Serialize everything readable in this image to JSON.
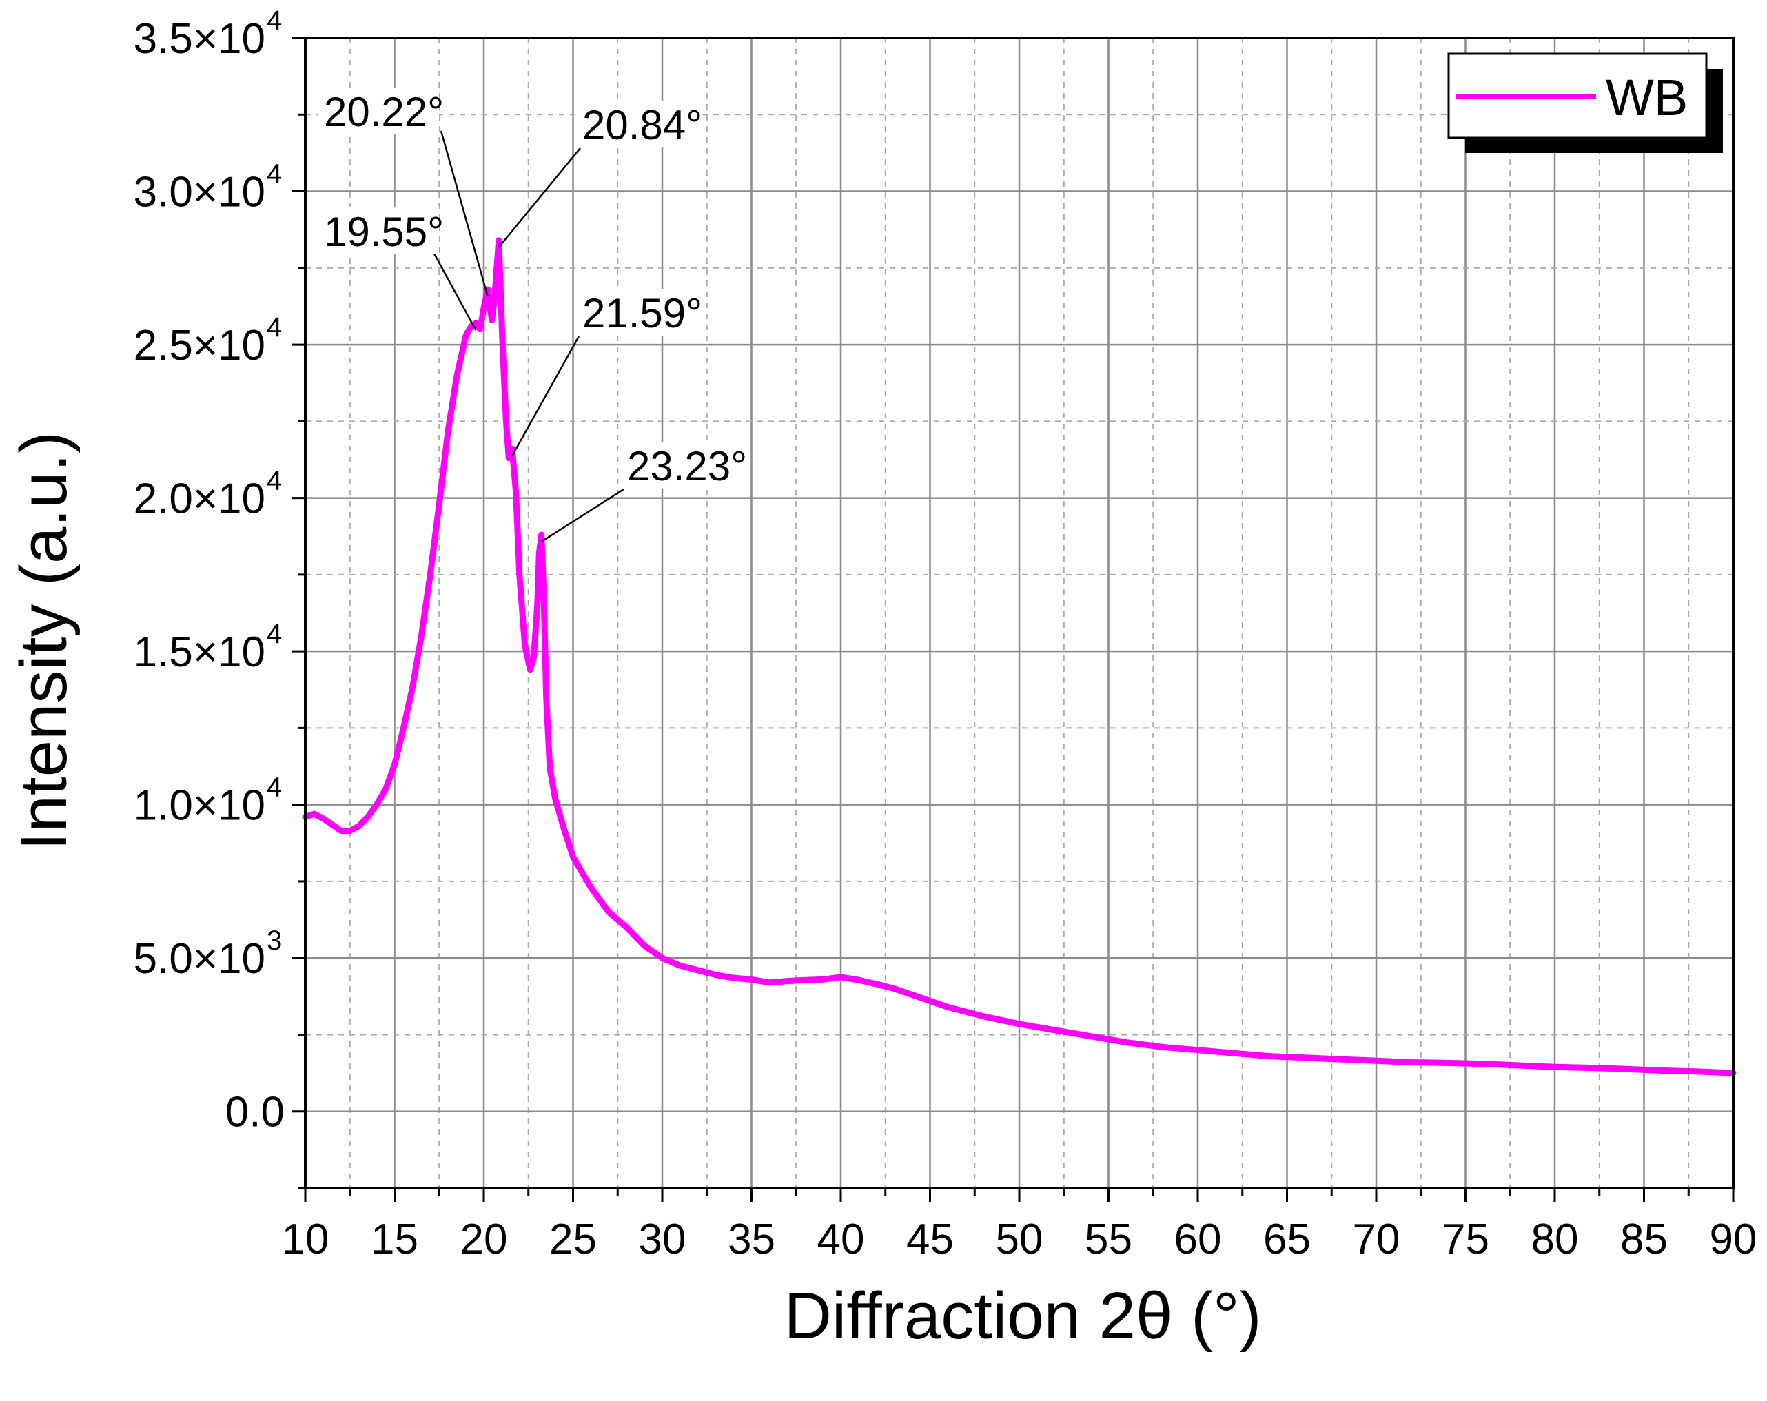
{
  "chart_data": {
    "type": "line",
    "title": "",
    "xlabel": "Diffraction 2θ (°)",
    "ylabel": "Intensity (a.u.)",
    "xlim": [
      10,
      90
    ],
    "ylim": [
      -2500,
      35000
    ],
    "grid": true,
    "legend_position": "top-right",
    "x_ticks": [
      10,
      15,
      20,
      25,
      30,
      35,
      40,
      45,
      50,
      55,
      60,
      65,
      70,
      75,
      80,
      85,
      90
    ],
    "x_tick_labels": [
      "10",
      "15",
      "20",
      "25",
      "30",
      "35",
      "40",
      "45",
      "50",
      "55",
      "60",
      "65",
      "70",
      "75",
      "80",
      "85",
      "90"
    ],
    "y_ticks": [
      {
        "value": 0,
        "mantissa": "0.0",
        "exponent": ""
      },
      {
        "value": 5000,
        "mantissa": "5.0×10",
        "exponent": "3"
      },
      {
        "value": 10000,
        "mantissa": "1.0×10",
        "exponent": "4"
      },
      {
        "value": 15000,
        "mantissa": "1.5×10",
        "exponent": "4"
      },
      {
        "value": 20000,
        "mantissa": "2.0×10",
        "exponent": "4"
      },
      {
        "value": 25000,
        "mantissa": "2.5×10",
        "exponent": "4"
      },
      {
        "value": 30000,
        "mantissa": "3.0×10",
        "exponent": "4"
      },
      {
        "value": 35000,
        "mantissa": "3.5×10",
        "exponent": "4"
      }
    ],
    "series": [
      {
        "name": "WB",
        "color": "#ff00ff",
        "x": [
          10,
          10.5,
          11,
          11.5,
          12,
          12.5,
          13,
          13.5,
          14,
          14.5,
          15,
          15.5,
          16,
          16.5,
          17,
          17.5,
          18,
          18.5,
          19,
          19.3,
          19.55,
          19.8,
          20.0,
          20.22,
          20.45,
          20.6,
          20.84,
          21.05,
          21.25,
          21.4,
          21.59,
          21.8,
          22.0,
          22.3,
          22.6,
          22.8,
          23.0,
          23.1,
          23.23,
          23.35,
          23.5,
          23.7,
          24,
          24.5,
          25,
          26,
          27,
          28,
          29,
          30,
          31,
          32,
          33,
          34,
          35,
          36,
          37,
          38,
          39,
          40,
          41,
          42,
          43,
          44,
          45,
          46,
          47,
          48,
          50,
          52,
          54,
          56,
          58,
          60,
          62,
          64,
          66,
          68,
          70,
          72,
          74,
          76,
          78,
          80,
          82,
          84,
          86,
          88,
          90
        ],
        "y": [
          9600,
          9700,
          9550,
          9350,
          9150,
          9150,
          9300,
          9600,
          10000,
          10500,
          11300,
          12500,
          13800,
          15500,
          17500,
          19800,
          22200,
          24000,
          25300,
          25600,
          25700,
          25500,
          26200,
          26800,
          25800,
          26500,
          28400,
          25000,
          22500,
          21300,
          21600,
          20200,
          17500,
          15200,
          14400,
          14800,
          16500,
          18200,
          18800,
          17000,
          13500,
          11200,
          10200,
          9200,
          8300,
          7300,
          6500,
          6000,
          5400,
          5000,
          4750,
          4600,
          4450,
          4350,
          4300,
          4200,
          4250,
          4280,
          4300,
          4380,
          4280,
          4150,
          4000,
          3800,
          3600,
          3400,
          3250,
          3100,
          2850,
          2650,
          2450,
          2250,
          2100,
          2000,
          1900,
          1800,
          1750,
          1700,
          1650,
          1600,
          1580,
          1550,
          1500,
          1450,
          1420,
          1380,
          1330,
          1300,
          1250
        ]
      }
    ],
    "annotations": [
      {
        "label": "20.22°",
        "x": 20.22,
        "y": 26800
      },
      {
        "label": "20.84°",
        "x": 20.84,
        "y": 28400
      },
      {
        "label": "19.55°",
        "x": 19.55,
        "y": 25700
      },
      {
        "label": "21.59°",
        "x": 21.59,
        "y": 21600
      },
      {
        "label": "23.23°",
        "x": 23.23,
        "y": 18800
      }
    ],
    "legend": [
      {
        "label": "WB",
        "color": "#ff00ff"
      }
    ]
  }
}
